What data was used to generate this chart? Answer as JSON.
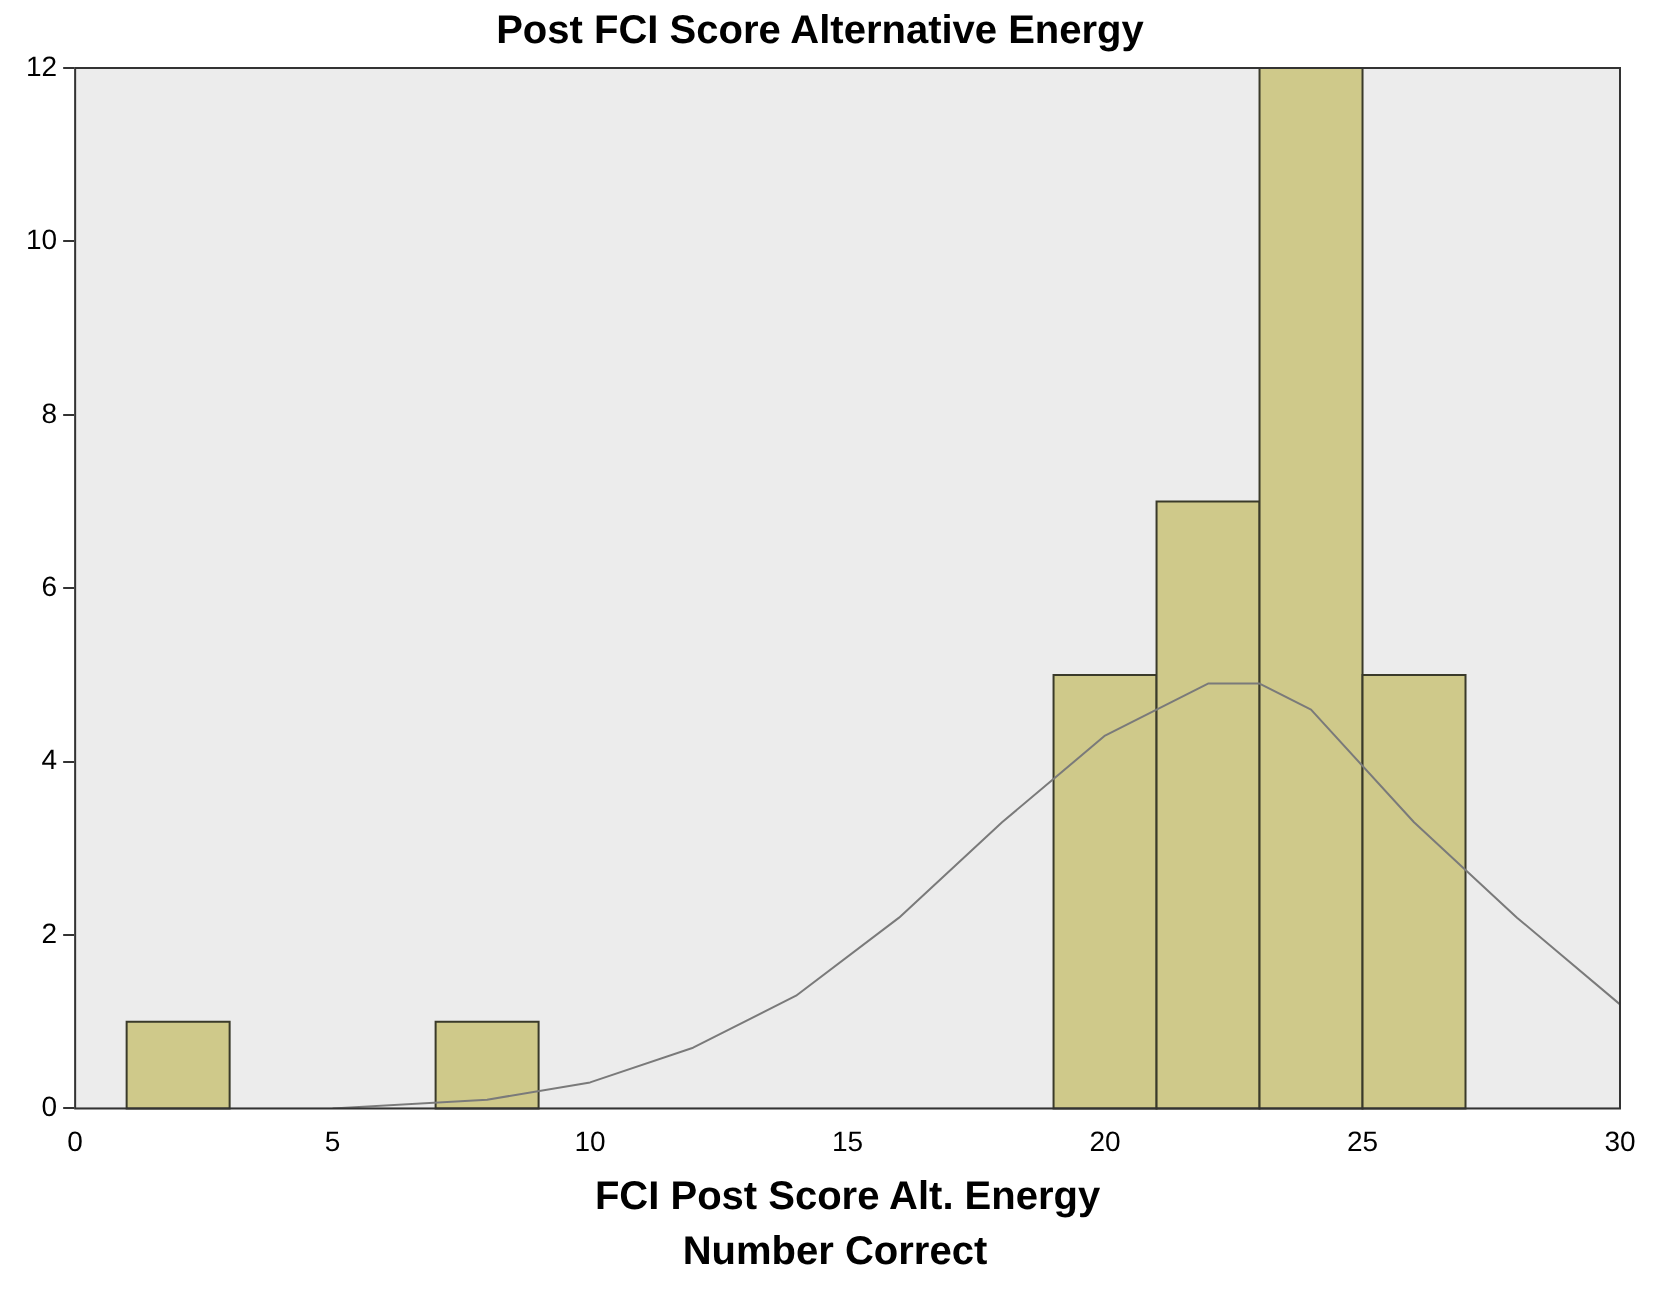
{
  "chart_data": {
    "type": "histogram",
    "title": "Post FCI Score Alternative Energy",
    "xlabel": "FCI Post Score Alt. Energy",
    "annotations": [
      "Number Correct"
    ],
    "bins": [
      1,
      3,
      5,
      7,
      9,
      11,
      13,
      15,
      17,
      19,
      21,
      23,
      25,
      27
    ],
    "values": [
      1,
      0,
      0,
      1,
      0,
      0,
      0,
      0,
      0,
      5,
      7,
      12,
      5
    ],
    "color": "#cfc98a",
    "series": [
      {
        "type": "line",
        "color": "#7a7a7a",
        "x": [
          5,
          8,
          10,
          12,
          14,
          16,
          18,
          20,
          22,
          23,
          24,
          26,
          28,
          30
        ],
        "values": [
          0,
          0.1,
          0.3,
          0.7,
          1.3,
          2.2,
          3.3,
          4.3,
          4.9,
          4.9,
          4.6,
          3.3,
          2.2,
          1.2
        ]
      }
    ],
    "xlim": [
      0,
      30
    ],
    "xticks": [
      0,
      5,
      10,
      15,
      20,
      25,
      30
    ],
    "ylim": [
      0,
      12
    ],
    "yticks": [
      0,
      2,
      4,
      6,
      8,
      10,
      12
    ],
    "grid": false,
    "legend": false
  }
}
